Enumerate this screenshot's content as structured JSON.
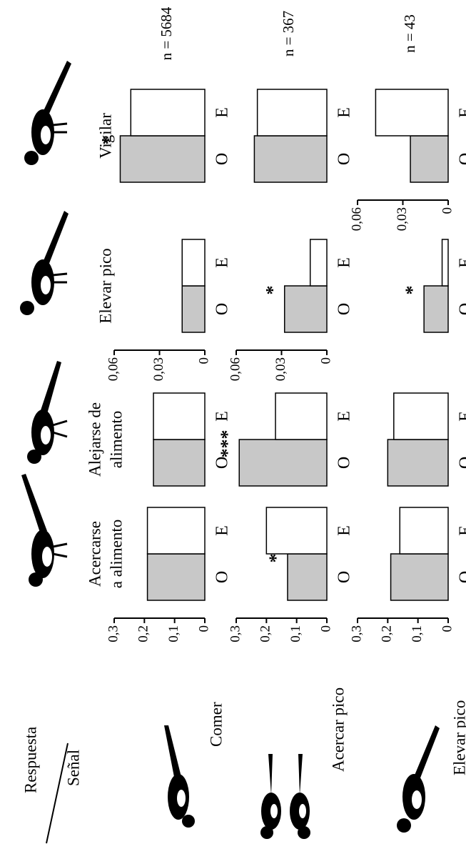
{
  "corner": {
    "response": "Respuesta",
    "signal": "Señal"
  },
  "responses": [
    [
      "Acercarse",
      "a alimento"
    ],
    [
      "Alejarse de",
      "alimento"
    ],
    [
      "Elevar pico"
    ],
    [
      "Vigilar"
    ]
  ],
  "signals": [
    "Comer",
    "Acercar pico",
    "Elevar pico"
  ],
  "n_labels": [
    "n = 5684",
    "n = 367",
    "n = 43"
  ],
  "chart_data": [
    {
      "type": "bar",
      "categories": [
        "O",
        "E"
      ],
      "values": [
        0.19,
        0.19
      ],
      "colors": [
        "#c8c8c8",
        "#ffffff"
      ],
      "ylim": [
        0,
        0.3
      ],
      "yticks": [
        {
          "value": 0.3,
          "label": "0,3"
        },
        {
          "value": 0.2,
          "label": "0,2"
        },
        {
          "value": 0.1,
          "label": "0,1"
        },
        0
      ]
    },
    {
      "type": "bar",
      "categories": [
        "O",
        "E"
      ],
      "values": [
        0.17,
        0.17
      ],
      "colors": [
        "#c8c8c8",
        "#ffffff"
      ],
      "ylim": [
        0,
        0.3
      ]
    },
    {
      "type": "bar",
      "categories": [
        "O",
        "E"
      ],
      "values": [
        0.015,
        0.015
      ],
      "colors": [
        "#c8c8c8",
        "#ffffff"
      ],
      "ylim": [
        0,
        0.06
      ],
      "yticks": [
        {
          "value": 0.06,
          "label": "0,06"
        },
        {
          "value": 0.03,
          "label": "0,03"
        },
        0
      ]
    },
    {
      "type": "bar",
      "categories": [
        "O",
        "E"
      ],
      "values": [
        0.056,
        0.049
      ],
      "colors": [
        "#c8c8c8",
        "#ffffff"
      ],
      "ylim": [
        0,
        0.06
      ],
      "annotation": "*"
    },
    {
      "type": "bar",
      "categories": [
        "O",
        "E"
      ],
      "values": [
        0.13,
        0.2
      ],
      "colors": [
        "#c8c8c8",
        "#ffffff"
      ],
      "ylim": [
        0,
        0.3
      ],
      "annotation": "*",
      "yticks": [
        {
          "value": 0.3,
          "label": "0,3"
        },
        {
          "value": 0.2,
          "label": "0,2"
        },
        {
          "value": 0.1,
          "label": "0,1"
        },
        0
      ]
    },
    {
      "type": "bar",
      "categories": [
        "O",
        "E"
      ],
      "values": [
        0.29,
        0.17
      ],
      "colors": [
        "#c8c8c8",
        "#ffffff"
      ],
      "ylim": [
        0,
        0.3
      ],
      "annotation": "***"
    },
    {
      "type": "bar",
      "categories": [
        "O",
        "E"
      ],
      "values": [
        0.028,
        0.011
      ],
      "colors": [
        "#c8c8c8",
        "#ffffff"
      ],
      "ylim": [
        0,
        0.06
      ],
      "annotation": "*",
      "yticks": [
        {
          "value": 0.06,
          "label": "0,06"
        },
        {
          "value": 0.03,
          "label": "0,03"
        },
        0
      ]
    },
    {
      "type": "bar",
      "categories": [
        "O",
        "E"
      ],
      "values": [
        0.048,
        0.046
      ],
      "colors": [
        "#c8c8c8",
        "#ffffff"
      ],
      "ylim": [
        0,
        0.06
      ]
    },
    {
      "type": "bar",
      "categories": [
        "O",
        "E"
      ],
      "values": [
        0.19,
        0.16
      ],
      "colors": [
        "#c8c8c8",
        "#ffffff"
      ],
      "ylim": [
        0,
        0.3
      ],
      "yticks": [
        {
          "value": 0.3,
          "label": "0,3"
        },
        {
          "value": 0.2,
          "label": "0,2"
        },
        {
          "value": 0.1,
          "label": "0,1"
        },
        0
      ]
    },
    {
      "type": "bar",
      "categories": [
        "O",
        "E"
      ],
      "values": [
        0.2,
        0.18
      ],
      "colors": [
        "#c8c8c8",
        "#ffffff"
      ],
      "ylim": [
        0,
        0.3
      ]
    },
    {
      "type": "bar",
      "categories": [
        "O",
        "E"
      ],
      "values": [
        0.016,
        0.004
      ],
      "colors": [
        "#c8c8c8",
        "#ffffff"
      ],
      "ylim": [
        0,
        0.06
      ],
      "annotation": "*"
    },
    {
      "type": "bar",
      "categories": [
        "O",
        "E"
      ],
      "values": [
        0.025,
        0.048
      ],
      "colors": [
        "#c8c8c8",
        "#ffffff"
      ],
      "ylim": [
        0,
        0.06
      ],
      "yticks": [
        {
          "value": 0.06,
          "label": "0,06"
        },
        {
          "value": 0.03,
          "label": "0,03"
        },
        0
      ]
    }
  ]
}
